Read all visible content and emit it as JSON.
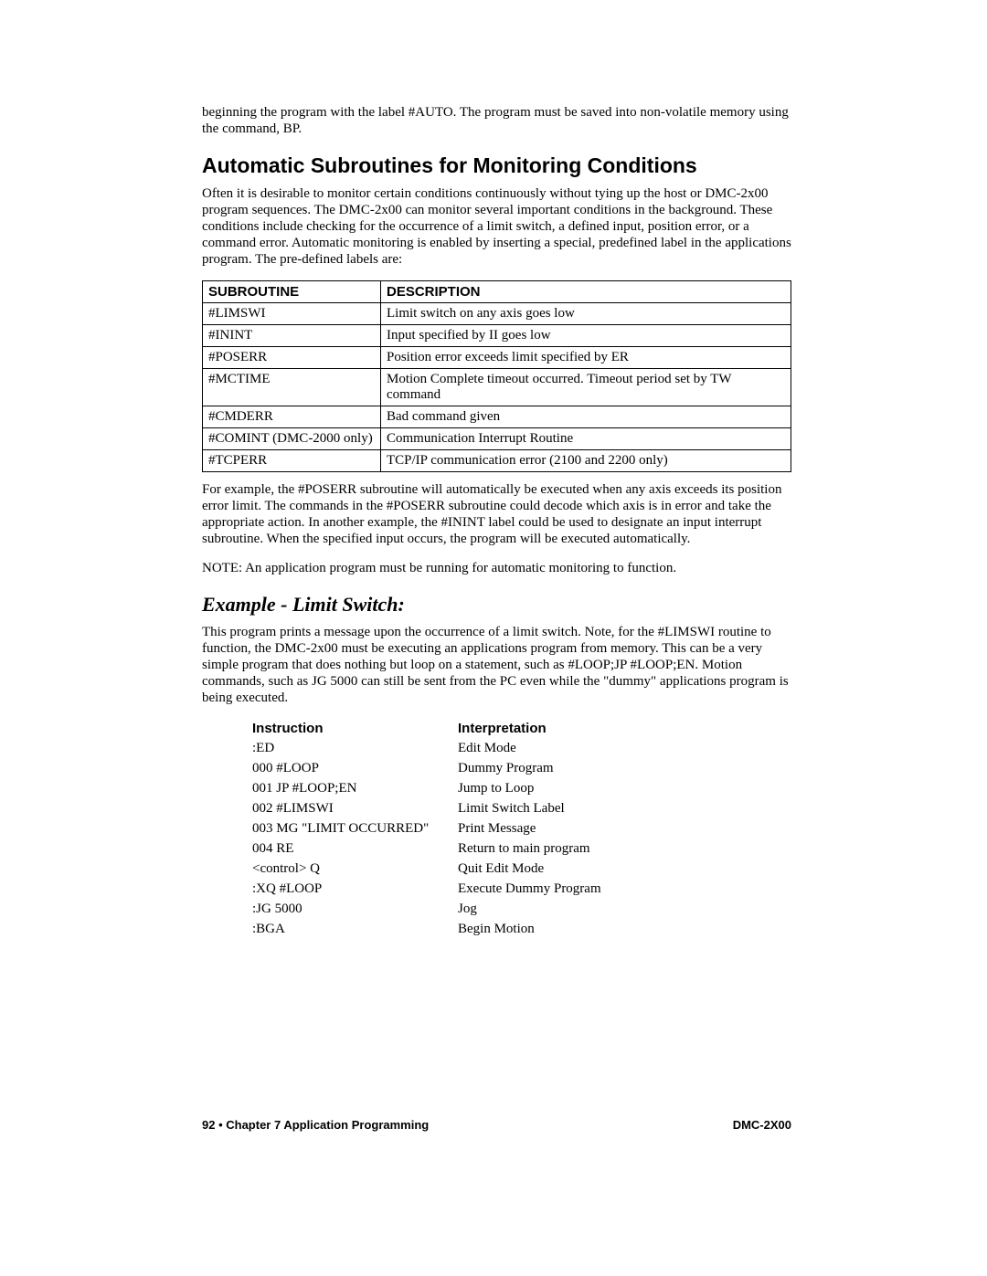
{
  "intro_para": "beginning the program with the label #AUTO.  The program must be saved into non-volatile memory using the command, BP.",
  "heading_auto": "Automatic Subroutines for Monitoring Conditions",
  "auto_para": "Often it is desirable to monitor certain conditions continuously without tying up the host or DMC-2x00 program sequences.  The DMC-2x00 can monitor several important conditions in the background.  These conditions include checking for the occurrence of a limit switch, a defined input, position error, or a command error.  Automatic monitoring is enabled by inserting a special, predefined label in the applications program.  The pre-defined labels are:",
  "table_headers": {
    "a": "SUBROUTINE",
    "b": "DESCRIPTION"
  },
  "rows": [
    {
      "a": "#LIMSWI",
      "b": "Limit switch on any axis goes low"
    },
    {
      "a": "#ININT",
      "b": "Input specified by II goes low"
    },
    {
      "a": "#POSERR",
      "b": "Position error exceeds limit specified by ER"
    },
    {
      "a": "#MCTIME",
      "b": "Motion Complete timeout occurred.  Timeout period set by TW command"
    },
    {
      "a": "#CMDERR",
      "b": "Bad command given"
    },
    {
      "a": "#COMINT (DMC-2000 only)",
      "b": "Communication Interrupt Routine"
    },
    {
      "a": "#TCPERR",
      "b": "TCP/IP communication error (2100 and 2200 only)"
    }
  ],
  "after_table_para": "For example, the #POSERR subroutine will automatically be executed when any axis exceeds its position error limit.  The commands in the #POSERR subroutine could decode which axis is in error and take the appropriate action.  In another example, the #ININT label could be used to designate an input interrupt subroutine.  When the specified input occurs, the program will be executed automatically.",
  "note_para": "NOTE:  An application program must be running for automatic monitoring to function.",
  "heading_example": "Example - Limit Switch:",
  "example_para": "This program prints a message upon the occurrence of a limit switch.  Note, for the #LIMSWI routine to function, the DMC-2x00 must be executing an applications program from memory.  This can be a very simple program that does nothing but loop on a statement, such as #LOOP;JP #LOOP;EN.  Motion commands, such as JG 5000 can still be sent from the PC even while the \"dummy\" applications program is being executed.",
  "inst_headers": {
    "a": "Instruction",
    "b": "Interpretation"
  },
  "inst": [
    {
      "a": ":ED",
      "b": "Edit Mode"
    },
    {
      "a": "000 #LOOP",
      "b": "Dummy Program"
    },
    {
      "a": "001 JP #LOOP;EN",
      "b": "Jump to Loop"
    },
    {
      "a": "002 #LIMSWI",
      "b": "Limit Switch Label"
    },
    {
      "a": "003 MG \"LIMIT OCCURRED\"",
      "b": "Print Message"
    },
    {
      "a": "004 RE",
      "b": "Return to main program"
    },
    {
      "a": "<control> Q",
      "b": "Quit Edit Mode"
    },
    {
      "a": ":XQ #LOOP",
      "b": "Execute Dummy Program"
    },
    {
      "a": ":JG 5000",
      "b": "Jog"
    },
    {
      "a": ":BGA",
      "b": "Begin Motion"
    }
  ],
  "footer_left": "92  •  Chapter 7 Application Programming",
  "footer_right": "DMC-2X00"
}
